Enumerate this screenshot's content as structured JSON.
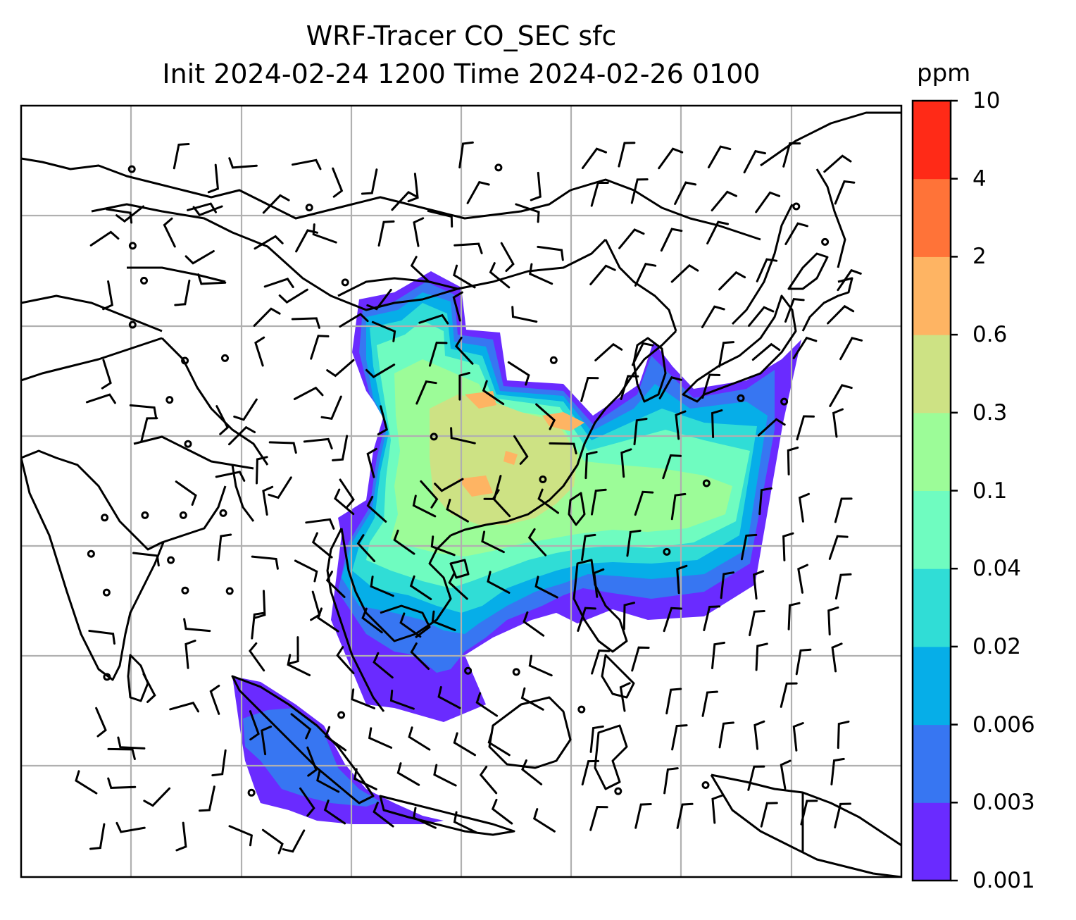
{
  "title": {
    "line1": "WRF-Tracer CO_SEC sfc",
    "line2": "Init 2024-02-24 1200 Time 2024-02-26 0100"
  },
  "colorbar": {
    "unit": "ppm",
    "levels": [
      "0.001",
      "0.003",
      "0.006",
      "0.02",
      "0.04",
      "0.1",
      "0.3",
      "0.6",
      "2",
      "4",
      "10"
    ],
    "colors": [
      "#6a2bff",
      "#3776f2",
      "#06aee8",
      "#30ddd6",
      "#6ffcc0",
      "#9cfc98",
      "#cde284",
      "#feb463",
      "#ff7338",
      "#ff2a17"
    ]
  },
  "map": {
    "coastline_color": "#000000",
    "grid_color": "#b0b0b0",
    "wind_barb_color": "#000000"
  }
}
